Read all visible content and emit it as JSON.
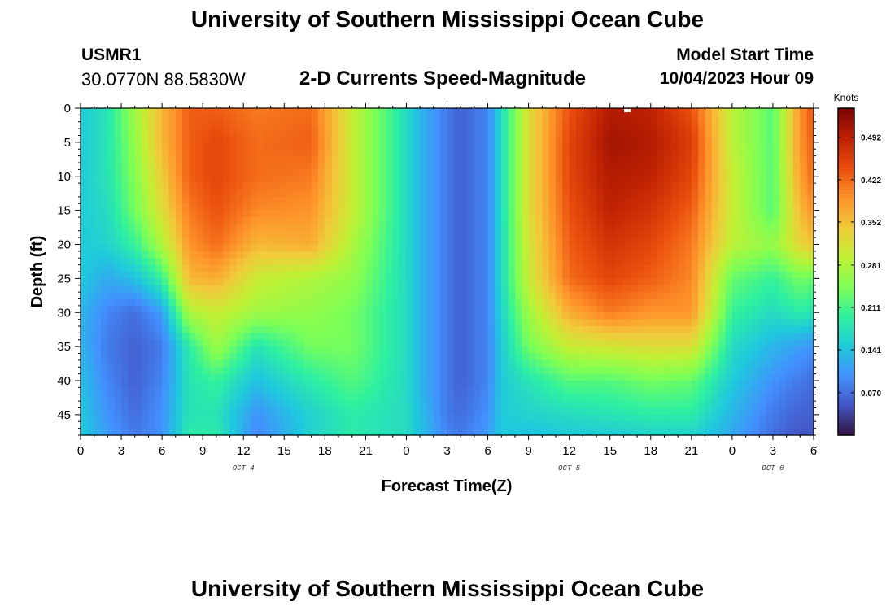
{
  "header": {
    "title": "University of Southern Mississippi Ocean Cube",
    "station_id": "USMR1",
    "coords": "30.0770N  88.5830W",
    "subtitle": "2-D Currents Speed-Magnitude",
    "model_label": "Model Start Time",
    "model_time": "10/04/2023 Hour 09"
  },
  "footer": {
    "title": "University of Southern Mississippi Ocean Cube"
  },
  "chart_data": {
    "type": "heatmap",
    "title": "2-D Currents Speed-Magnitude",
    "xlabel": "Forecast Time(Z)",
    "ylabel": "Depth (ft)",
    "x_range": [
      0,
      54
    ],
    "y_range": [
      0,
      48
    ],
    "x_ticks": [
      0,
      3,
      6,
      9,
      12,
      15,
      18,
      21,
      24,
      27,
      30,
      33,
      36,
      39,
      42,
      45,
      48,
      51,
      54
    ],
    "x_tick_labels": [
      "0",
      "3",
      "6",
      "9",
      "12",
      "15",
      "18",
      "21",
      "0",
      "3",
      "6",
      "9",
      "12",
      "15",
      "18",
      "21",
      "0",
      "3",
      "6"
    ],
    "y_ticks": [
      0,
      5,
      10,
      15,
      20,
      25,
      30,
      35,
      40,
      45
    ],
    "y_tick_labels": [
      "0",
      "5",
      "10",
      "15",
      "20",
      "25",
      "30",
      "35",
      "40",
      "45"
    ],
    "day_labels": [
      {
        "hour": 12,
        "text": "OCT 4"
      },
      {
        "hour": 36,
        "text": "OCT 5"
      },
      {
        "hour": 51,
        "text": "OCT 6"
      }
    ],
    "colorbar": {
      "unit": "Knots",
      "range": [
        0.0,
        0.54
      ],
      "ticks": [
        0.07,
        0.141,
        0.211,
        0.281,
        0.352,
        0.422,
        0.492
      ],
      "tick_labels": [
        "0.070",
        "0.141",
        "0.211",
        "0.281",
        "0.352",
        "0.422",
        "0.492"
      ],
      "colormap": [
        "#30123b",
        "#4454c4",
        "#4390fe",
        "#1fc9dd",
        "#2ff0a0",
        "#7eff55",
        "#c1f034",
        "#f1ca3a",
        "#fe922a",
        "#ea4e0d",
        "#be2102",
        "#7a0403"
      ]
    },
    "profile_hours": [
      0,
      2,
      4,
      6,
      8,
      10,
      13,
      17,
      20,
      24,
      25,
      27,
      28,
      30,
      31,
      33,
      36,
      39,
      42,
      45,
      48,
      51,
      53,
      54
    ],
    "profile_depths": [
      0,
      5,
      10,
      15,
      20,
      25,
      30,
      35,
      40,
      45,
      48
    ],
    "speed_profiles_knots": [
      [
        0.15,
        0.15,
        0.15,
        0.15,
        0.15,
        0.15,
        0.13,
        0.13,
        0.14,
        0.15,
        0.15
      ],
      [
        0.18,
        0.18,
        0.18,
        0.17,
        0.16,
        0.12,
        0.09,
        0.08,
        0.09,
        0.1,
        0.11
      ],
      [
        0.27,
        0.26,
        0.25,
        0.24,
        0.2,
        0.14,
        0.07,
        0.06,
        0.06,
        0.07,
        0.08
      ],
      [
        0.36,
        0.36,
        0.34,
        0.32,
        0.28,
        0.2,
        0.11,
        0.08,
        0.09,
        0.1,
        0.1
      ],
      [
        0.43,
        0.43,
        0.43,
        0.41,
        0.39,
        0.36,
        0.28,
        0.19,
        0.18,
        0.18,
        0.19
      ],
      [
        0.43,
        0.45,
        0.45,
        0.44,
        0.42,
        0.37,
        0.3,
        0.27,
        0.2,
        0.18,
        0.19
      ],
      [
        0.41,
        0.42,
        0.42,
        0.4,
        0.36,
        0.3,
        0.27,
        0.18,
        0.14,
        0.1,
        0.09
      ],
      [
        0.42,
        0.43,
        0.41,
        0.39,
        0.37,
        0.28,
        0.26,
        0.24,
        0.19,
        0.16,
        0.16
      ],
      [
        0.3,
        0.3,
        0.3,
        0.3,
        0.28,
        0.26,
        0.24,
        0.24,
        0.22,
        0.19,
        0.19
      ],
      [
        0.17,
        0.17,
        0.17,
        0.17,
        0.17,
        0.17,
        0.17,
        0.17,
        0.17,
        0.17,
        0.17
      ],
      [
        0.13,
        0.13,
        0.13,
        0.13,
        0.13,
        0.13,
        0.13,
        0.13,
        0.13,
        0.14,
        0.14
      ],
      [
        0.08,
        0.08,
        0.08,
        0.08,
        0.08,
        0.08,
        0.08,
        0.08,
        0.08,
        0.08,
        0.09
      ],
      [
        0.06,
        0.06,
        0.06,
        0.06,
        0.06,
        0.06,
        0.06,
        0.06,
        0.06,
        0.07,
        0.08
      ],
      [
        0.09,
        0.09,
        0.09,
        0.09,
        0.09,
        0.09,
        0.09,
        0.09,
        0.09,
        0.1,
        0.11
      ],
      [
        0.17,
        0.17,
        0.17,
        0.17,
        0.17,
        0.17,
        0.16,
        0.15,
        0.15,
        0.15,
        0.15
      ],
      [
        0.32,
        0.32,
        0.32,
        0.32,
        0.31,
        0.3,
        0.27,
        0.24,
        0.18,
        0.16,
        0.14
      ],
      [
        0.44,
        0.45,
        0.45,
        0.44,
        0.43,
        0.42,
        0.37,
        0.3,
        0.22,
        0.17,
        0.15
      ],
      [
        0.5,
        0.51,
        0.5,
        0.49,
        0.47,
        0.45,
        0.41,
        0.31,
        0.22,
        0.18,
        0.15
      ],
      [
        0.49,
        0.5,
        0.49,
        0.47,
        0.45,
        0.43,
        0.39,
        0.32,
        0.24,
        0.19,
        0.16
      ],
      [
        0.44,
        0.46,
        0.45,
        0.43,
        0.41,
        0.4,
        0.39,
        0.32,
        0.23,
        0.19,
        0.16
      ],
      [
        0.29,
        0.29,
        0.3,
        0.3,
        0.29,
        0.23,
        0.2,
        0.17,
        0.15,
        0.13,
        0.12
      ],
      [
        0.22,
        0.22,
        0.22,
        0.22,
        0.26,
        0.2,
        0.17,
        0.13,
        0.1,
        0.08,
        0.07
      ],
      [
        0.39,
        0.39,
        0.38,
        0.36,
        0.33,
        0.24,
        0.19,
        0.11,
        0.08,
        0.06,
        0.05
      ],
      [
        0.44,
        0.43,
        0.42,
        0.39,
        0.35,
        0.23,
        0.18,
        0.1,
        0.07,
        0.06,
        0.05
      ]
    ]
  }
}
